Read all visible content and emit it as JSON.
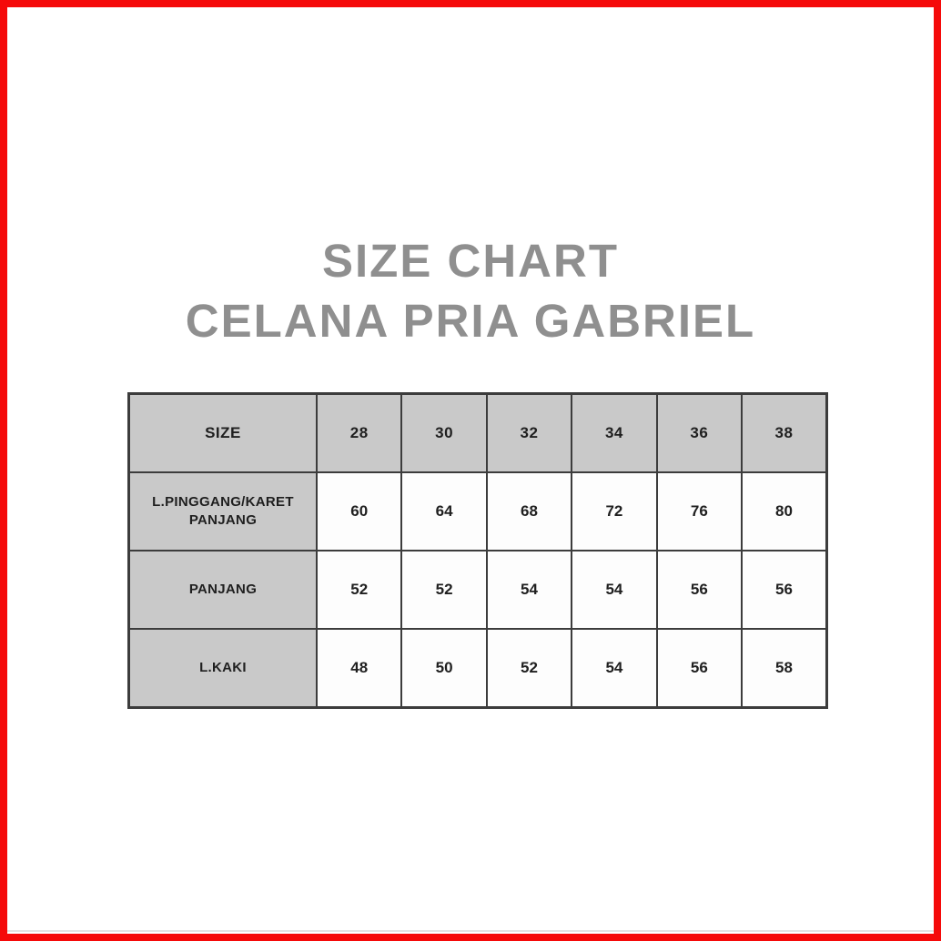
{
  "title": {
    "line1": "SIZE CHART",
    "line2": "CELANA PRIA GABRIEL"
  },
  "chart_data": {
    "type": "table",
    "title": "SIZE CHART CELANA PRIA GABRIEL",
    "columns": [
      "SIZE",
      "28",
      "30",
      "32",
      "34",
      "36",
      "38"
    ],
    "rows": [
      {
        "label": "L.PINGGANG/KARET PANJANG",
        "values": [
          60,
          64,
          68,
          72,
          76,
          80
        ]
      },
      {
        "label": "PANJANG",
        "values": [
          52,
          52,
          54,
          54,
          56,
          56
        ]
      },
      {
        "label": "L.KAKI",
        "values": [
          48,
          50,
          52,
          54,
          56,
          58
        ]
      }
    ]
  },
  "colors": {
    "frame": "#f50a0a",
    "title_text": "#8f8f8f",
    "header_cell_bg": "#c9c9c9",
    "data_cell_bg": "#fdfdfd",
    "table_border": "#3c3c3c",
    "cell_text": "#1f1f1f",
    "footer_line": "#e3e3e3"
  }
}
